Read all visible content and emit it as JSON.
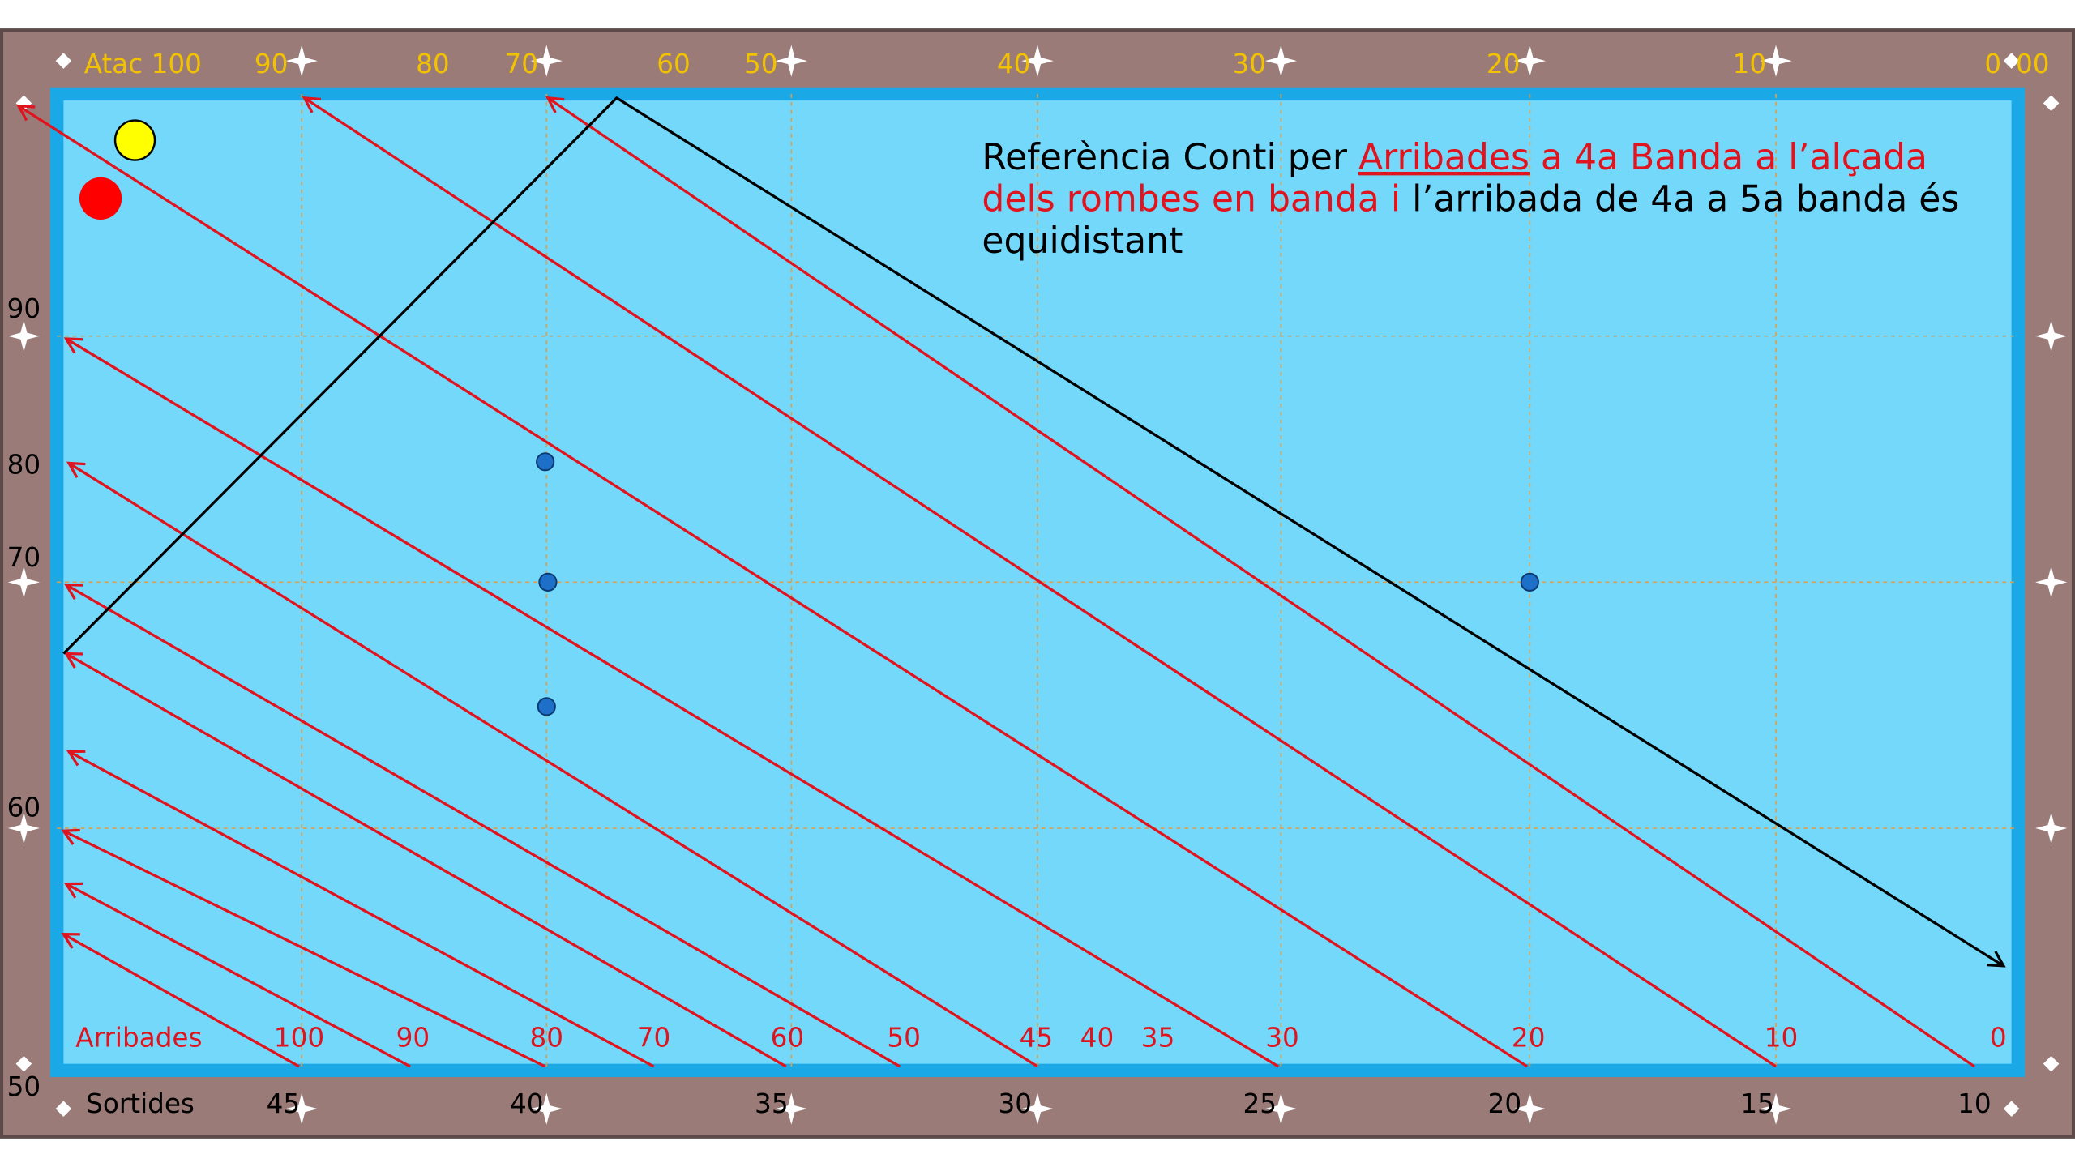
{
  "frame": {
    "top_labels": [
      "Atac 100",
      "90",
      "80",
      "70",
      "60",
      "50",
      "40",
      "30",
      "20",
      "10",
      "0",
      "00"
    ],
    "left_labels": [
      "90",
      "80",
      "70",
      "60",
      "50"
    ],
    "arrival_labels": [
      "Arribades",
      "100",
      "90",
      "80",
      "70",
      "60",
      "50",
      "45",
      "40",
      "35",
      "30",
      "20",
      "10",
      "0"
    ],
    "exit_labels": [
      "Sortides",
      "45",
      "40",
      "35",
      "30",
      "25",
      "20",
      "15",
      "10"
    ]
  },
  "annotation": {
    "lines": [
      [
        "Referència Conti per ",
        "Arribades",
        " a 4a Banda a l’alçada"
      ],
      [
        "dels rombes en banda i",
        " l’arribada de 4a a 5a banda és"
      ],
      [
        "equidistant"
      ]
    ]
  }
}
